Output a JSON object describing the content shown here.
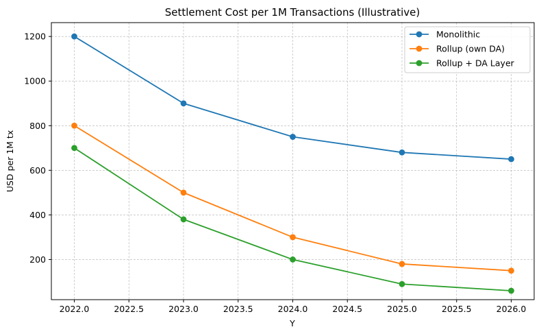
{
  "chart_data": {
    "type": "line",
    "title": "Settlement Cost per 1M Transactions (Illustrative)",
    "xlabel": "Y",
    "ylabel": "USD per 1M tx",
    "x": [
      2022,
      2023,
      2024,
      2025,
      2026
    ],
    "xlim": [
      2021.79,
      2026.21
    ],
    "ylim": [
      20,
      1262
    ],
    "xticks": [
      2022.0,
      2022.5,
      2023.0,
      2023.5,
      2024.0,
      2024.5,
      2025.0,
      2025.5,
      2026.0
    ],
    "xtick_labels": [
      "2022.0",
      "2022.5",
      "2023.0",
      "2023.5",
      "2024.0",
      "2024.5",
      "2025.0",
      "2025.5",
      "2026.0"
    ],
    "yticks": [
      200,
      400,
      600,
      800,
      1000,
      1200
    ],
    "ytick_labels": [
      "200",
      "400",
      "600",
      "800",
      "1000",
      "1200"
    ],
    "grid": true,
    "legend_position": "top-right",
    "series": [
      {
        "name": "Monolithic",
        "color": "#1f77b4",
        "values": [
          1200,
          900,
          750,
          680,
          650
        ]
      },
      {
        "name": "Rollup (own DA)",
        "color": "#ff7f0e",
        "values": [
          800,
          500,
          300,
          180,
          150
        ]
      },
      {
        "name": "Rollup + DA Layer",
        "color": "#2ca02c",
        "values": [
          700,
          380,
          200,
          90,
          60
        ]
      }
    ]
  }
}
